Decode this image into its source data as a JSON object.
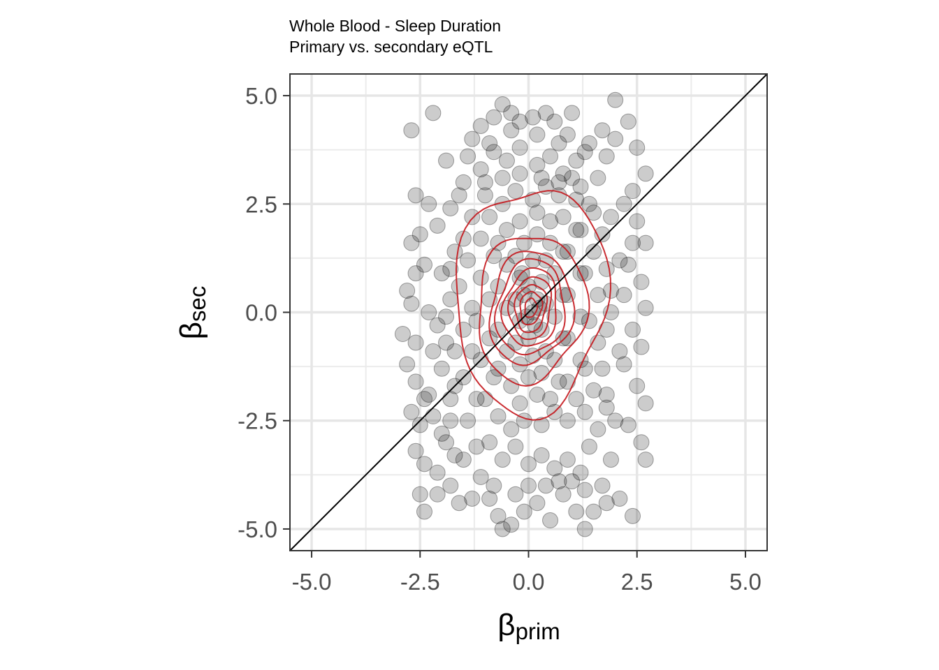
{
  "chart_data": {
    "type": "scatter",
    "title": "Whole Blood - Sleep Duration",
    "subtitle": "Primary vs. secondary eQTL",
    "xlabel": {
      "symbol": "β",
      "subscript": "prim"
    },
    "ylabel": {
      "symbol": "β",
      "subscript": "sec"
    },
    "xlim": [
      -5.5,
      5.5
    ],
    "ylim": [
      -5.5,
      5.5
    ],
    "x_ticks": [
      -5.0,
      -2.5,
      0.0,
      2.5,
      5.0
    ],
    "x_tick_labels": [
      "-5.0",
      "-2.5",
      "0.0",
      "2.5",
      "5.0"
    ],
    "y_ticks": [
      -5.0,
      -2.5,
      0.0,
      2.5,
      5.0
    ],
    "y_tick_labels": [
      "-5.0",
      "-2.5",
      "0.0",
      "2.5",
      "5.0"
    ],
    "grid": true,
    "reference_line": {
      "type": "identity",
      "slope": 1,
      "intercept": 0,
      "color": "#000000"
    },
    "point_color": "#000000",
    "point_opacity": 0.2,
    "contour_color": "#c4161c",
    "contour_center": [
      0.05,
      0.1
    ],
    "contours": [
      {
        "rx": 1.75,
        "ry": 2.6,
        "cy_offset": 0.2,
        "tilt": 0.04
      },
      {
        "rx": 1.25,
        "ry": 1.7,
        "cy_offset": 0.0,
        "tilt": 0.06
      },
      {
        "rx": 0.95,
        "ry": 1.3,
        "cy_offset": 0.0,
        "tilt": 0.07
      },
      {
        "rx": 0.78,
        "ry": 1.1,
        "cy_offset": 0.0,
        "tilt": 0.07
      },
      {
        "rx": 0.62,
        "ry": 0.9,
        "cy_offset": 0.0,
        "tilt": 0.08
      },
      {
        "rx": 0.48,
        "ry": 0.72,
        "cy_offset": 0.0,
        "tilt": 0.08
      },
      {
        "rx": 0.36,
        "ry": 0.55,
        "cy_offset": 0.0,
        "tilt": 0.08
      },
      {
        "rx": 0.25,
        "ry": 0.38,
        "cy_offset": 0.0,
        "tilt": 0.08
      },
      {
        "rx": 0.14,
        "ry": 0.22,
        "cy_offset": 0.0,
        "tilt": 0.08
      }
    ],
    "points": [
      [
        -2.7,
        4.2
      ],
      [
        -2.2,
        4.6
      ],
      [
        -2.6,
        2.7
      ],
      [
        -2.3,
        2.5
      ],
      [
        -2.5,
        1.8
      ],
      [
        -2.7,
        1.6
      ],
      [
        -2.4,
        1.1
      ],
      [
        -2.6,
        0.9
      ],
      [
        -2.8,
        0.5
      ],
      [
        -2.7,
        0.2
      ],
      [
        -2.9,
        -0.5
      ],
      [
        -2.6,
        -0.7
      ],
      [
        -2.8,
        -1.2
      ],
      [
        -2.6,
        -1.6
      ],
      [
        -2.4,
        -2.0
      ],
      [
        -2.7,
        -2.3
      ],
      [
        -2.5,
        -2.6
      ],
      [
        -2.6,
        -3.2
      ],
      [
        -2.4,
        -3.5
      ],
      [
        -2.5,
        -4.2
      ],
      [
        -2.4,
        -4.6
      ],
      [
        -2.1,
        -4.2
      ],
      [
        -1.8,
        -4.0
      ],
      [
        -1.6,
        -4.4
      ],
      [
        -2.1,
        -3.7
      ],
      [
        -1.9,
        -3.0
      ],
      [
        -2.2,
        -2.4
      ],
      [
        -1.8,
        -2.0
      ],
      [
        -2.0,
        -1.3
      ],
      [
        -1.7,
        -0.9
      ],
      [
        -2.1,
        -0.3
      ],
      [
        -1.8,
        0.3
      ],
      [
        -2.0,
        0.9
      ],
      [
        -1.7,
        1.4
      ],
      [
        -2.1,
        2.0
      ],
      [
        -1.8,
        2.4
      ],
      [
        -1.9,
        3.5
      ],
      [
        -1.5,
        3.0
      ],
      [
        -1.6,
        2.7
      ],
      [
        -1.3,
        4.0
      ],
      [
        -1.1,
        4.3
      ],
      [
        -0.8,
        4.5
      ],
      [
        -0.6,
        4.8
      ],
      [
        -0.4,
        4.6
      ],
      [
        -0.2,
        4.4
      ],
      [
        0.1,
        4.5
      ],
      [
        0.4,
        4.6
      ],
      [
        0.6,
        4.4
      ],
      [
        0.9,
        4.1
      ],
      [
        -1.4,
        3.6
      ],
      [
        -1.1,
        3.3
      ],
      [
        -0.8,
        3.7
      ],
      [
        -0.5,
        3.5
      ],
      [
        -0.2,
        3.8
      ],
      [
        0.2,
        3.4
      ],
      [
        0.5,
        3.6
      ],
      [
        0.8,
        3.2
      ],
      [
        1.1,
        3.5
      ],
      [
        1.4,
        3.9
      ],
      [
        1.7,
        4.2
      ],
      [
        2.0,
        4.0
      ],
      [
        2.3,
        4.4
      ],
      [
        2.0,
        4.9
      ],
      [
        2.5,
        3.8
      ],
      [
        2.7,
        3.2
      ],
      [
        2.4,
        2.8
      ],
      [
        2.2,
        2.5
      ],
      [
        2.5,
        2.1
      ],
      [
        1.9,
        2.2
      ],
      [
        2.4,
        1.6
      ],
      [
        2.7,
        1.6
      ],
      [
        2.3,
        1.1
      ],
      [
        2.6,
        0.7
      ],
      [
        2.2,
        0.4
      ],
      [
        2.7,
        0.1
      ],
      [
        2.4,
        -0.4
      ],
      [
        2.6,
        -0.8
      ],
      [
        2.2,
        -1.2
      ],
      [
        2.5,
        -1.7
      ],
      [
        2.7,
        -2.1
      ],
      [
        2.3,
        -2.6
      ],
      [
        2.6,
        -3.0
      ],
      [
        2.7,
        -3.4
      ],
      [
        2.4,
        -4.7
      ],
      [
        2.1,
        -4.3
      ],
      [
        1.9,
        -3.4
      ],
      [
        2.0,
        -2.5
      ],
      [
        1.8,
        -1.9
      ],
      [
        2.1,
        -0.9
      ],
      [
        1.9,
        0.0
      ],
      [
        2.1,
        1.2
      ],
      [
        1.7,
        1.8
      ],
      [
        1.5,
        2.3
      ],
      [
        1.2,
        2.9
      ],
      [
        1.6,
        3.1
      ],
      [
        1.3,
        3.7
      ],
      [
        1.0,
        4.6
      ],
      [
        1.8,
        3.6
      ],
      [
        -1.0,
        2.7
      ],
      [
        -1.3,
        2.2
      ],
      [
        -1.5,
        1.7
      ],
      [
        -1.4,
        1.2
      ],
      [
        -1.6,
        0.6
      ],
      [
        -1.3,
        0.1
      ],
      [
        -1.5,
        -0.4
      ],
      [
        -1.3,
        -0.9
      ],
      [
        -1.5,
        -1.5
      ],
      [
        -1.2,
        -2.0
      ],
      [
        -1.4,
        -2.5
      ],
      [
        -1.2,
        -3.1
      ],
      [
        -1.5,
        -3.4
      ],
      [
        -1.1,
        -3.8
      ],
      [
        -0.9,
        -4.3
      ],
      [
        -0.7,
        -4.7
      ],
      [
        -0.4,
        -4.9
      ],
      [
        -0.1,
        -4.6
      ],
      [
        0.2,
        -4.4
      ],
      [
        0.5,
        -4.8
      ],
      [
        0.8,
        -4.2
      ],
      [
        1.1,
        -4.6
      ],
      [
        1.3,
        -5.0
      ],
      [
        1.5,
        -4.6
      ],
      [
        1.7,
        -4.0
      ],
      [
        1.2,
        -3.7
      ],
      [
        0.9,
        -3.4
      ],
      [
        0.6,
        -3.6
      ],
      [
        0.3,
        -3.3
      ],
      [
        0.0,
        -3.5
      ],
      [
        -0.3,
        -3.1
      ],
      [
        -0.6,
        -3.4
      ],
      [
        -0.9,
        -3.0
      ],
      [
        1.4,
        -3.1
      ],
      [
        1.6,
        -2.7
      ],
      [
        1.3,
        -2.3
      ],
      [
        1.5,
        -1.8
      ],
      [
        1.3,
        -1.3
      ],
      [
        1.6,
        -0.7
      ],
      [
        1.4,
        -0.2
      ],
      [
        1.6,
        0.4
      ],
      [
        1.3,
        0.9
      ],
      [
        1.5,
        1.4
      ],
      [
        1.2,
        1.9
      ],
      [
        1.4,
        2.5
      ],
      [
        1.0,
        3.1
      ],
      [
        0.7,
        2.7
      ],
      [
        0.4,
        2.9
      ],
      [
        0.1,
        2.6
      ],
      [
        -0.3,
        2.8
      ],
      [
        -0.6,
        2.5
      ],
      [
        -0.9,
        2.2
      ],
      [
        -1.1,
        1.7
      ],
      [
        -0.8,
        1.3
      ],
      [
        -1.1,
        0.8
      ],
      [
        -0.9,
        0.3
      ],
      [
        -1.2,
        -0.2
      ],
      [
        -0.9,
        -0.6
      ],
      [
        -1.1,
        -1.1
      ],
      [
        -0.8,
        -1.5
      ],
      [
        -1.0,
        -2.0
      ],
      [
        -0.7,
        -2.4
      ],
      [
        -0.4,
        -2.7
      ],
      [
        -0.1,
        -2.5
      ],
      [
        0.3,
        -2.6
      ],
      [
        0.6,
        -2.3
      ],
      [
        0.9,
        -2.5
      ],
      [
        1.1,
        -2.0
      ],
      [
        0.9,
        -1.6
      ],
      [
        1.2,
        -1.1
      ],
      [
        0.9,
        -0.6
      ],
      [
        1.2,
        -0.1
      ],
      [
        0.9,
        0.4
      ],
      [
        1.2,
        0.9
      ],
      [
        0.9,
        1.4
      ],
      [
        1.1,
        1.9
      ],
      [
        0.8,
        2.2
      ],
      [
        0.5,
        2.1
      ],
      [
        0.2,
        2.3
      ],
      [
        -0.2,
        2.1
      ],
      [
        -0.5,
        1.9
      ],
      [
        -0.7,
        1.6
      ],
      [
        -0.5,
        1.1
      ],
      [
        -0.7,
        0.6
      ],
      [
        -0.5,
        0.1
      ],
      [
        -0.7,
        -0.4
      ],
      [
        -0.5,
        -0.9
      ],
      [
        -0.7,
        -1.3
      ],
      [
        -0.4,
        -1.7
      ],
      [
        -0.2,
        -2.1
      ],
      [
        0.2,
        -1.9
      ],
      [
        0.5,
        -2.0
      ],
      [
        0.7,
        -1.6
      ],
      [
        0.6,
        -1.1
      ],
      [
        0.8,
        -0.6
      ],
      [
        0.6,
        -0.1
      ],
      [
        0.8,
        0.4
      ],
      [
        0.6,
        0.9
      ],
      [
        0.8,
        1.4
      ],
      [
        0.5,
        1.6
      ],
      [
        0.2,
        1.8
      ],
      [
        -0.1,
        1.6
      ],
      [
        -0.3,
        1.3
      ],
      [
        -0.2,
        0.8
      ],
      [
        -0.3,
        0.3
      ],
      [
        -0.2,
        -0.2
      ],
      [
        -0.3,
        -0.7
      ],
      [
        -0.2,
        -1.2
      ],
      [
        0.0,
        -1.5
      ],
      [
        0.3,
        -1.4
      ],
      [
        0.4,
        -0.9
      ],
      [
        0.3,
        -0.4
      ],
      [
        0.4,
        0.2
      ],
      [
        0.3,
        0.7
      ],
      [
        0.4,
        1.2
      ],
      [
        0.1,
        1.2
      ],
      [
        0.0,
        0.6
      ],
      [
        0.1,
        0.0
      ],
      [
        0.0,
        -0.6
      ],
      [
        0.1,
        -1.0
      ],
      [
        0.2,
        0.3
      ],
      [
        -0.1,
        0.4
      ],
      [
        0.15,
        -0.3
      ],
      [
        -0.05,
        -0.1
      ],
      [
        0.25,
        0.1
      ],
      [
        -0.15,
        0.9
      ],
      [
        -2.3,
        0.0
      ],
      [
        -2.2,
        -0.9
      ],
      [
        -2.3,
        -1.9
      ],
      [
        -2.0,
        -2.8
      ],
      [
        -1.7,
        -3.3
      ],
      [
        -1.3,
        -4.3
      ],
      [
        -0.6,
        -5.0
      ],
      [
        -0.8,
        -4.0
      ],
      [
        -0.3,
        -4.2
      ],
      [
        0.0,
        -4.0
      ],
      [
        0.4,
        -4.0
      ],
      [
        0.7,
        -3.9
      ],
      [
        1.0,
        -3.9
      ],
      [
        1.3,
        -4.1
      ],
      [
        1.8,
        -4.4
      ],
      [
        -1.0,
        3.0
      ],
      [
        -0.6,
        3.1
      ],
      [
        -0.2,
        3.2
      ],
      [
        0.3,
        3.1
      ],
      [
        0.7,
        3.0
      ],
      [
        1.1,
        2.6
      ],
      [
        -1.8,
        1.0
      ],
      [
        -1.9,
        -0.1
      ],
      [
        -1.9,
        -0.7
      ],
      [
        -1.7,
        -1.7
      ],
      [
        -1.8,
        -2.5
      ],
      [
        1.8,
        1.0
      ],
      [
        1.9,
        0.5
      ],
      [
        1.8,
        -0.4
      ],
      [
        1.7,
        -1.3
      ],
      [
        1.8,
        -2.2
      ],
      [
        -0.4,
        4.2
      ],
      [
        0.2,
        4.1
      ],
      [
        0.7,
        3.9
      ],
      [
        -0.9,
        3.9
      ]
    ]
  }
}
